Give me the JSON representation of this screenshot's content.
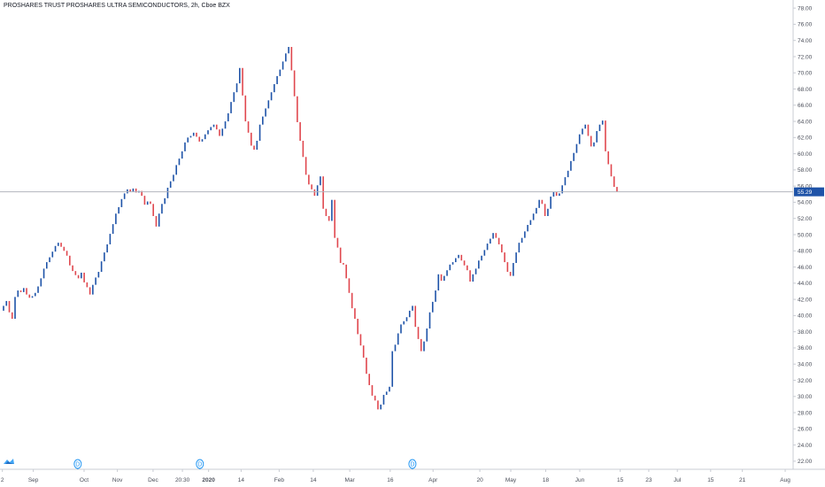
{
  "header": {
    "title": "PROSHARES TRUST PROSHARES ULTRA SEMICONDUCTORS, 2h, Cboe BZX"
  },
  "branding": {
    "logo_icon": "tradingview-logo-icon"
  },
  "colors": {
    "up": "#1e53a8",
    "down": "#e0474e",
    "axis_line": "#c9ccd3",
    "price_line": "#b2b5be",
    "price_label_bg": "#1e53a8",
    "dividend": "#2196f3"
  },
  "chart_data": {
    "type": "candlestick",
    "title": "PROSHARES TRUST PROSHARES ULTRA SEMICONDUCTORS, 2h, Cboe BZX",
    "ylim": [
      21,
      79
    ],
    "y_ticks": [
      "78.00",
      "76.00",
      "74.00",
      "72.00",
      "70.00",
      "68.00",
      "66.00",
      "64.00",
      "62.00",
      "60.00",
      "58.00",
      "56.00",
      "54.00",
      "52.00",
      "50.00",
      "48.00",
      "46.00",
      "44.00",
      "42.00",
      "40.00",
      "38.00",
      "36.00",
      "34.00",
      "32.00",
      "30.00",
      "28.00",
      "26.00",
      "24.00",
      "22.00"
    ],
    "x_ticks": [
      {
        "label": "2",
        "pos": 0.003
      },
      {
        "label": "Sep",
        "pos": 0.042
      },
      {
        "label": "Oct",
        "pos": 0.106
      },
      {
        "label": "Nov",
        "pos": 0.148
      },
      {
        "label": "Dec",
        "pos": 0.193
      },
      {
        "label": "20:30",
        "pos": 0.23
      },
      {
        "label": "2020",
        "pos": 0.263,
        "bold": true
      },
      {
        "label": "14",
        "pos": 0.304
      },
      {
        "label": "Feb",
        "pos": 0.352
      },
      {
        "label": "14",
        "pos": 0.395
      },
      {
        "label": "Mar",
        "pos": 0.441
      },
      {
        "label": "16",
        "pos": 0.492
      },
      {
        "label": "Apr",
        "pos": 0.546
      },
      {
        "label": "20",
        "pos": 0.605
      },
      {
        "label": "May",
        "pos": 0.644
      },
      {
        "label": "18",
        "pos": 0.688
      },
      {
        "label": "Jun",
        "pos": 0.731
      },
      {
        "label": "15",
        "pos": 0.782
      },
      {
        "label": "23",
        "pos": 0.818
      },
      {
        "label": "Jul",
        "pos": 0.854
      },
      {
        "label": "15",
        "pos": 0.896
      },
      {
        "label": "21",
        "pos": 0.936
      },
      {
        "label": "Aug",
        "pos": 0.99
      }
    ],
    "last_price": 55.29,
    "last_price_label": "55.29",
    "dividend_markers": [
      {
        "label": "D",
        "pos": 0.098
      },
      {
        "label": "D",
        "pos": 0.252
      },
      {
        "label": "D",
        "pos": 0.52
      }
    ],
    "series": [
      {
        "name": "",
        "close": [
          41.2,
          41.8,
          40.4,
          39.6,
          42.3,
          43.1,
          42.9,
          43.4,
          42.6,
          42.2,
          42.4,
          42.8,
          43.6,
          44.6,
          45.8,
          46.6,
          47.2,
          47.9,
          48.6,
          49.0,
          48.5,
          48.0,
          47.4,
          46.2,
          45.5,
          45.0,
          44.6,
          45.3,
          44.1,
          43.5,
          42.6,
          43.8,
          44.7,
          45.4,
          46.7,
          47.8,
          48.8,
          50.1,
          51.3,
          52.6,
          53.4,
          54.4,
          55.1,
          55.6,
          55.3,
          55.7,
          55.2,
          55.4,
          54.8,
          53.7,
          54.1,
          53.8,
          52.3,
          51.0,
          52.6,
          53.8,
          54.5,
          55.8,
          56.6,
          57.4,
          58.6,
          59.4,
          60.3,
          61.4,
          62.0,
          62.2,
          62.6,
          62.1,
          61.5,
          61.8,
          62.4,
          62.9,
          63.3,
          63.6,
          63.0,
          62.2,
          63.1,
          64.0,
          65.0,
          66.4,
          67.6,
          68.7,
          70.6,
          67.2,
          64.0,
          62.6,
          61.0,
          60.5,
          61.6,
          63.6,
          64.6,
          65.6,
          66.6,
          67.6,
          68.6,
          69.6,
          70.4,
          71.4,
          72.4,
          73.2,
          70.3,
          67.1,
          63.9,
          61.6,
          59.6,
          57.4,
          56.2,
          55.6,
          54.8,
          56.1,
          57.2,
          53.2,
          52.3,
          51.7,
          54.3,
          49.6,
          48.4,
          46.5,
          46.3,
          44.6,
          42.8,
          40.9,
          39.6,
          37.7,
          36.3,
          34.8,
          32.8,
          31.4,
          30.1,
          29.5,
          28.4,
          29.0,
          30.2,
          30.6,
          31.2,
          35.6,
          36.4,
          37.8,
          38.9,
          39.3,
          39.8,
          40.6,
          41.2,
          38.6,
          37.1,
          35.6,
          36.8,
          38.4,
          40.4,
          41.7,
          43.1,
          45.1,
          44.3,
          44.9,
          45.6,
          46.3,
          46.6,
          47.1,
          47.5,
          46.8,
          46.2,
          45.6,
          44.2,
          45.1,
          45.8,
          46.8,
          47.4,
          48.1,
          48.9,
          49.5,
          50.2,
          49.6,
          48.8,
          47.8,
          46.6,
          45.4,
          44.9,
          46.5,
          47.8,
          49.0,
          49.6,
          50.4,
          51.2,
          51.8,
          52.6,
          53.3,
          54.3,
          53.8,
          52.3,
          53.2,
          54.7,
          55.3,
          54.8,
          55.1,
          56.1,
          57.1,
          57.9,
          59.1,
          60.1,
          61.2,
          62.4,
          63.1,
          63.6,
          62.2,
          60.9,
          61.4,
          62.8,
          63.6,
          64.1,
          60.3,
          58.7,
          57.2,
          55.9,
          55.3
        ],
        "open": [
          40.6,
          41.2,
          41.8,
          40.4,
          39.6,
          42.3,
          43.1,
          42.9,
          43.4,
          42.6,
          42.2,
          42.4,
          42.8,
          43.6,
          44.6,
          45.8,
          46.6,
          47.2,
          47.9,
          48.6,
          49.0,
          48.5,
          48.0,
          47.4,
          46.2,
          45.5,
          45.0,
          44.6,
          45.3,
          44.1,
          43.5,
          42.6,
          43.8,
          44.7,
          45.4,
          46.7,
          47.8,
          48.8,
          50.1,
          51.3,
          52.6,
          53.4,
          54.4,
          55.1,
          55.6,
          55.3,
          55.7,
          55.2,
          55.4,
          54.8,
          53.7,
          54.1,
          53.8,
          52.3,
          51.0,
          52.6,
          53.8,
          54.5,
          55.8,
          56.6,
          57.4,
          58.6,
          59.4,
          60.3,
          61.4,
          62.0,
          62.2,
          62.6,
          62.1,
          61.5,
          61.8,
          62.4,
          62.9,
          63.3,
          63.6,
          63.0,
          62.2,
          63.1,
          64.0,
          65.0,
          66.4,
          67.6,
          68.7,
          70.6,
          67.2,
          64.0,
          62.6,
          61.0,
          60.5,
          61.6,
          63.6,
          64.6,
          65.6,
          66.6,
          67.6,
          68.6,
          69.6,
          70.4,
          71.4,
          72.4,
          73.2,
          70.3,
          67.1,
          63.9,
          61.6,
          59.6,
          57.4,
          56.2,
          55.6,
          54.8,
          56.1,
          57.2,
          53.2,
          52.3,
          51.7,
          54.3,
          49.6,
          48.4,
          46.5,
          46.3,
          44.6,
          42.8,
          40.9,
          39.6,
          37.7,
          36.3,
          34.8,
          32.8,
          31.4,
          30.1,
          29.5,
          28.4,
          29.0,
          30.2,
          30.6,
          31.2,
          35.6,
          36.4,
          37.8,
          38.9,
          39.3,
          39.8,
          40.6,
          41.2,
          38.6,
          37.1,
          35.6,
          36.8,
          38.4,
          40.4,
          41.7,
          43.1,
          45.1,
          44.3,
          44.9,
          45.6,
          46.3,
          46.6,
          47.1,
          47.5,
          46.8,
          46.2,
          45.6,
          44.2,
          45.1,
          45.8,
          46.8,
          47.4,
          48.1,
          48.9,
          49.5,
          50.2,
          49.6,
          48.8,
          47.8,
          46.6,
          45.4,
          44.9,
          46.5,
          47.8,
          49.0,
          49.6,
          50.4,
          51.2,
          51.8,
          52.6,
          53.3,
          54.3,
          53.8,
          52.3,
          53.2,
          54.7,
          55.3,
          54.8,
          55.1,
          56.1,
          57.1,
          57.9,
          59.1,
          60.1,
          61.2,
          62.4,
          63.1,
          63.6,
          62.2,
          60.9,
          61.4,
          62.8,
          63.6,
          64.1,
          60.3,
          58.7,
          57.2,
          55.9
        ]
      }
    ]
  }
}
